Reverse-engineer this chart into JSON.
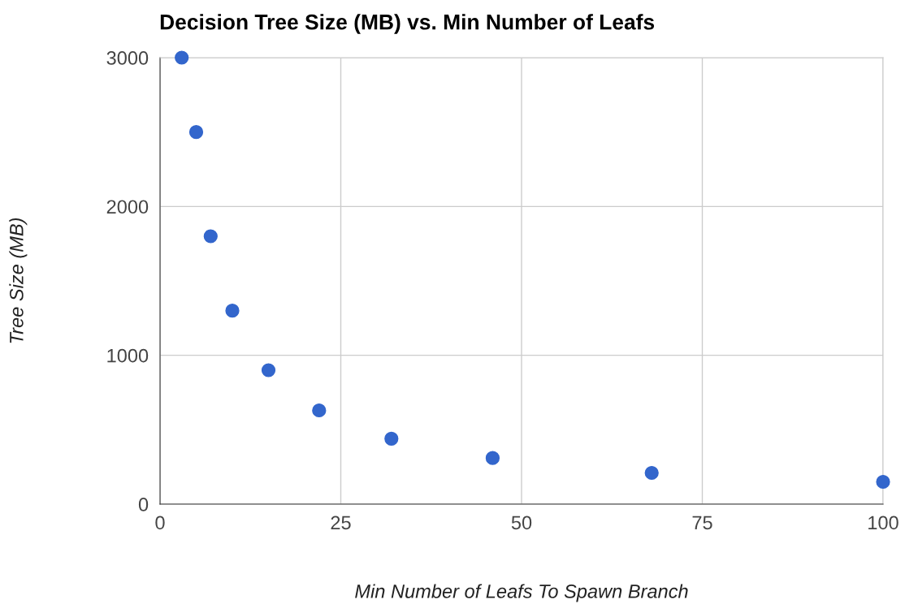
{
  "chart_data": {
    "type": "scatter",
    "title": "Decision Tree Size (MB) vs. Min Number of Leafs",
    "xlabel": "Min Number of Leafs To Spawn Branch",
    "ylabel": "Tree Size (MB)",
    "x": [
      3,
      5,
      7,
      10,
      15,
      22,
      32,
      46,
      68,
      100
    ],
    "series": [
      {
        "color": "#3366cc",
        "values": [
          3000,
          2500,
          1800,
          1300,
          900,
          630,
          440,
          310,
          210,
          150
        ]
      }
    ],
    "xlim": [
      0,
      100
    ],
    "xticks": [
      0,
      25,
      50,
      75,
      100
    ],
    "ylim": [
      0,
      3000
    ],
    "yticks": [
      0,
      1000,
      2000,
      3000
    ],
    "grid": true,
    "marker": "circle",
    "legend": false
  }
}
